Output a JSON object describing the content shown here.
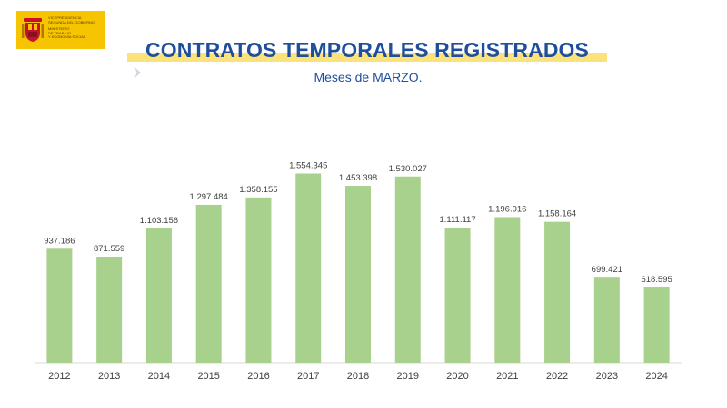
{
  "header": {
    "logo_lines": [
      "Vicepresidencia",
      "Segunda del Gobierno",
      "Ministerio",
      "de Trabajo",
      "y Economía Social"
    ],
    "title": "CONTRATOS TEMPORALES REGISTRADOS",
    "subtitle": "Meses de MARZO."
  },
  "colors": {
    "bar": "#a9d18e",
    "title": "#1f4e9c",
    "band": "#fbe27a",
    "logo_bg": "#f6c400"
  },
  "chart_data": {
    "type": "bar",
    "categories": [
      "2012",
      "2013",
      "2014",
      "2015",
      "2016",
      "2017",
      "2018",
      "2019",
      "2020",
      "2021",
      "2022",
      "2023",
      "2024"
    ],
    "values": [
      937186,
      871559,
      1103156,
      1297484,
      1358155,
      1554345,
      1453398,
      1530027,
      1111117,
      1196916,
      1158164,
      699421,
      618595
    ],
    "data_labels": [
      "937.186",
      "871.559",
      "1.103.156",
      "1.297.484",
      "1.358.155",
      "1.554.345",
      "1.453.398",
      "1.530.027",
      "1.111.117",
      "1.196.916",
      "1.158.164",
      "699.421",
      "618.595"
    ],
    "title": "CONTRATOS TEMPORALES REGISTRADOS",
    "subtitle": "Meses de MARZO.",
    "ylim": [
      0,
      1600000
    ],
    "grid": false,
    "legend": "none"
  }
}
